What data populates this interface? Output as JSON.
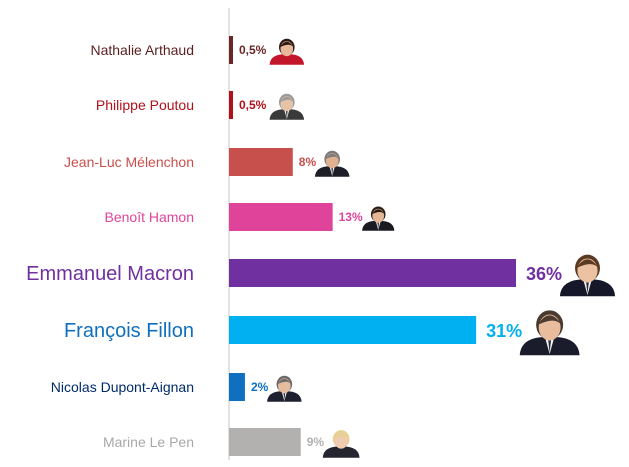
{
  "chart_data": {
    "type": "bar",
    "orientation": "horizontal",
    "title": "",
    "xlabel": "",
    "ylabel": "",
    "xlim": [
      0,
      36
    ],
    "grid": false,
    "legend": "none",
    "categories": [
      "Nathalie Arthaud",
      "Philippe Poutou",
      "Jean-Luc Mélenchon",
      "Benoît Hamon",
      "Emmanuel Macron",
      "François Fillon",
      "Nicolas Dupont-Aignan",
      "Marine Le Pen"
    ],
    "values": [
      0.5,
      0.5,
      8,
      13,
      36,
      31,
      2,
      9
    ],
    "value_labels": [
      "0,5%",
      "0,5%",
      "8%",
      "13%",
      "36%",
      "31%",
      "2%",
      "9%"
    ],
    "colors": [
      "#6b2626",
      "#b0101a",
      "#c8504c",
      "#e0449a",
      "#7030a0",
      "#00b0f0",
      "#1070c0",
      "#b3b0b0"
    ],
    "label_colors": [
      "#5b1f1f",
      "#b0101a",
      "#c8504c",
      "#e0449a",
      "#7030a0",
      "#1070c0",
      "#002b6b",
      "#a8a8a8"
    ],
    "highlighted": [
      "Emmanuel Macron",
      "François Fillon"
    ]
  }
}
